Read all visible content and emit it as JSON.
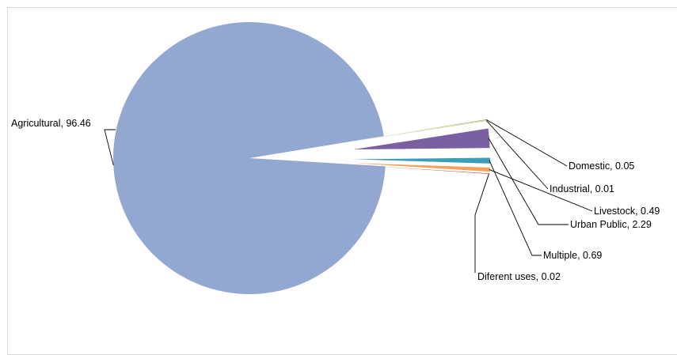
{
  "chart_data": {
    "type": "pie",
    "title": "",
    "legend": "none",
    "slices": [
      {
        "label": "Agricultural",
        "value": 96.46,
        "value_text": "96.46",
        "color": "#92a8d1"
      },
      {
        "label": "Domestic",
        "value": 0.05,
        "value_text": "0.05",
        "color": "#8fb047"
      },
      {
        "label": "Industrial",
        "value": 0.01,
        "value_text": "0.01",
        "color": "#b9c98d"
      },
      {
        "label": "Urban Public",
        "value": 2.29,
        "value_text": "2.29",
        "color": "#7a5fa1"
      },
      {
        "label": "Multiple",
        "value": 0.69,
        "value_text": "0.69",
        "color": "#3b9db6"
      },
      {
        "label": "Livestock",
        "value": 0.49,
        "value_text": "0.49",
        "color": "#f3a35a"
      },
      {
        "label": "Diferent uses",
        "value": 0.02,
        "value_text": "0.02",
        "color": "#c0504d"
      }
    ]
  }
}
